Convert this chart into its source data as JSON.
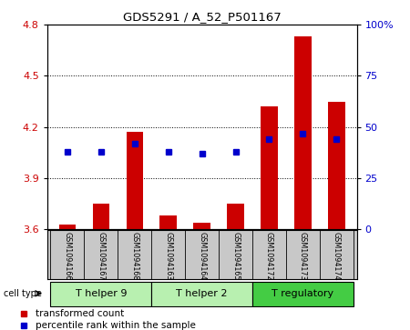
{
  "title": "GDS5291 / A_52_P501167",
  "samples": [
    "GSM1094166",
    "GSM1094167",
    "GSM1094168",
    "GSM1094163",
    "GSM1094164",
    "GSM1094165",
    "GSM1094172",
    "GSM1094173",
    "GSM1094174"
  ],
  "red_values": [
    3.63,
    3.75,
    4.17,
    3.68,
    3.64,
    3.75,
    4.32,
    4.73,
    4.35
  ],
  "blue_percentiles": [
    38,
    38,
    42,
    38,
    37,
    38,
    44,
    47,
    44
  ],
  "ylim_left": [
    3.6,
    4.8
  ],
  "ylim_right": [
    0,
    100
  ],
  "yticks_left": [
    3.6,
    3.9,
    4.2,
    4.5,
    4.8
  ],
  "yticks_right": [
    0,
    25,
    50,
    75,
    100
  ],
  "cell_groups": [
    {
      "label": "T helper 9",
      "indices": [
        0,
        1,
        2
      ],
      "color": "#b8f0b0"
    },
    {
      "label": "T helper 2",
      "indices": [
        3,
        4,
        5
      ],
      "color": "#b8f0b0"
    },
    {
      "label": "T regulatory",
      "indices": [
        6,
        7,
        8
      ],
      "color": "#44cc44"
    }
  ],
  "grid_yticks": [
    3.9,
    4.2,
    4.5,
    4.8
  ],
  "red_color": "#cc0000",
  "blue_color": "#0000cc",
  "bar_bottom": 3.6,
  "label_bg": "#c8c8c8",
  "legend_items": [
    "transformed count",
    "percentile rank within the sample"
  ]
}
